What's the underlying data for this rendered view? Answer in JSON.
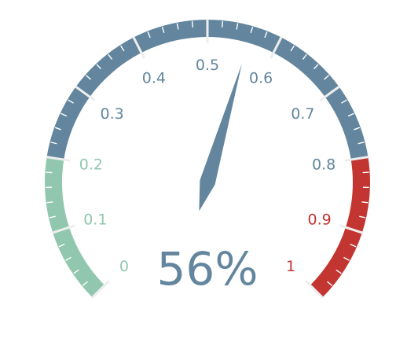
{
  "chart_data": {
    "type": "gauge",
    "value": 0.56,
    "value_label": "56%",
    "min": 0,
    "max": 1,
    "tick_labels": [
      "0",
      "0.1",
      "0.2",
      "0.3",
      "0.4",
      "0.5",
      "0.6",
      "0.7",
      "0.8",
      "0.9",
      "1"
    ],
    "bands": [
      {
        "from": 0,
        "to": 0.2,
        "color": "#91c7ae"
      },
      {
        "from": 0.2,
        "to": 0.8,
        "color": "#63869e"
      },
      {
        "from": 0.8,
        "to": 1,
        "color": "#c23531"
      }
    ],
    "pointer_color": "#63869e",
    "value_color": "#63869e"
  }
}
